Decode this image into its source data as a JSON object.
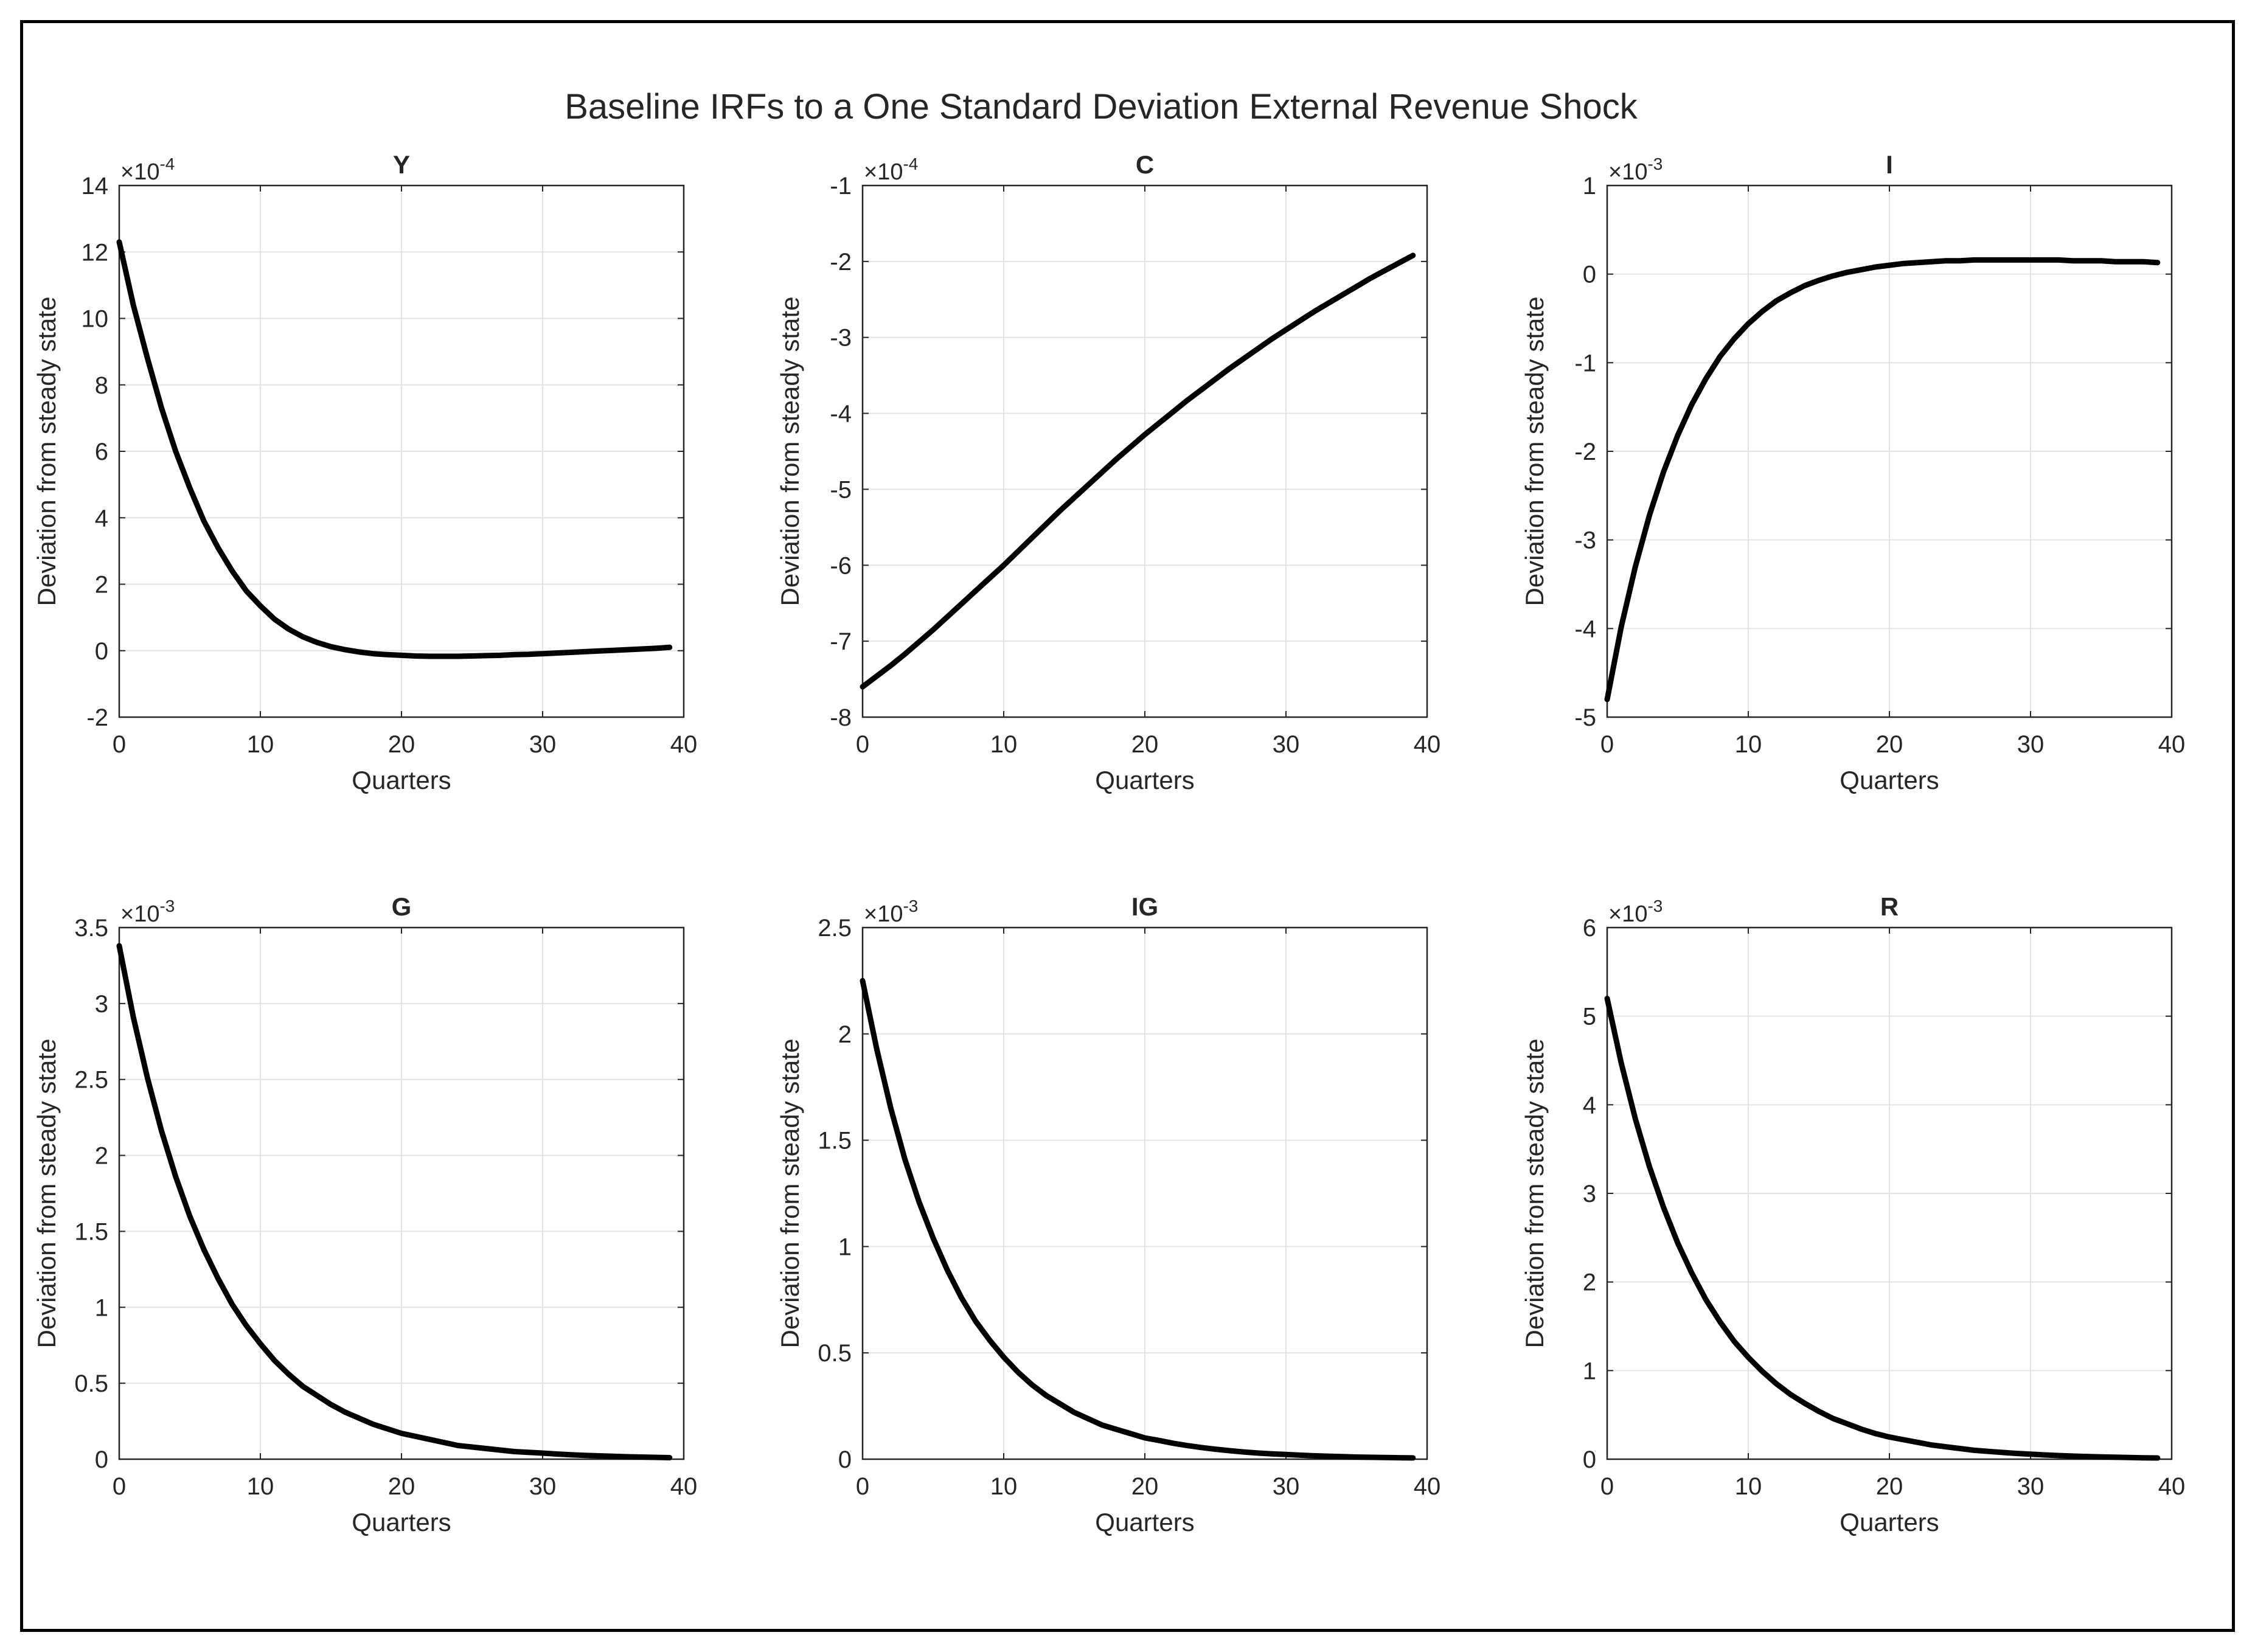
{
  "figure": {
    "title": "Baseline IRFs to a One Standard Deviation External Revenue Shock"
  },
  "chart_data": [
    {
      "type": "line",
      "title": "Y",
      "xlabel": "Quarters",
      "ylabel": "Deviation from steady state",
      "xlim": [
        0,
        40
      ],
      "ylim": [
        -2,
        14
      ],
      "xticks": [
        "0",
        "10",
        "20",
        "30",
        "40"
      ],
      "yticks": [
        "-2",
        "0",
        "2",
        "4",
        "6",
        "8",
        "10",
        "12",
        "14"
      ],
      "exponent_label": "×10",
      "exponent": "-4",
      "grid": true,
      "line_color": "#000000",
      "series": [
        {
          "x": [
            0,
            1,
            2,
            3,
            4,
            5,
            6,
            7,
            8,
            9,
            10,
            11,
            12,
            13,
            14,
            15,
            16,
            17,
            18,
            19,
            20,
            21,
            22,
            23,
            24,
            25,
            26,
            27,
            28,
            29,
            30,
            31,
            32,
            33,
            34,
            35,
            36,
            37,
            38,
            39
          ],
          "y": [
            12.3,
            10.4,
            8.8,
            7.3,
            6.0,
            4.9,
            3.9,
            3.1,
            2.4,
            1.8,
            1.35,
            0.95,
            0.65,
            0.42,
            0.25,
            0.12,
            0.03,
            -0.04,
            -0.09,
            -0.12,
            -0.14,
            -0.16,
            -0.17,
            -0.17,
            -0.17,
            -0.16,
            -0.15,
            -0.14,
            -0.12,
            -0.11,
            -0.09,
            -0.07,
            -0.05,
            -0.03,
            -0.01,
            0.01,
            0.03,
            0.05,
            0.07,
            0.1
          ]
        }
      ]
    },
    {
      "type": "line",
      "title": "C",
      "xlabel": "Quarters",
      "ylabel": "Deviation from steady state",
      "xlim": [
        0,
        40
      ],
      "ylim": [
        -8,
        -1
      ],
      "xticks": [
        "0",
        "10",
        "20",
        "30",
        "40"
      ],
      "yticks": [
        "-8",
        "-7",
        "-6",
        "-5",
        "-4",
        "-3",
        "-2",
        "-1"
      ],
      "exponent_label": "×10",
      "exponent": "-4",
      "grid": true,
      "line_color": "#000000",
      "series": [
        {
          "x": [
            0,
            1,
            2,
            3,
            4,
            5,
            6,
            7,
            8,
            9,
            10,
            11,
            12,
            13,
            14,
            15,
            16,
            17,
            18,
            19,
            20,
            21,
            22,
            23,
            24,
            25,
            26,
            27,
            28,
            29,
            30,
            31,
            32,
            33,
            34,
            35,
            36,
            37,
            38,
            39
          ],
          "y": [
            -7.6,
            -7.46,
            -7.32,
            -7.17,
            -7.01,
            -6.85,
            -6.68,
            -6.51,
            -6.34,
            -6.17,
            -6.0,
            -5.82,
            -5.64,
            -5.46,
            -5.28,
            -5.11,
            -4.94,
            -4.77,
            -4.6,
            -4.44,
            -4.28,
            -4.13,
            -3.98,
            -3.83,
            -3.69,
            -3.55,
            -3.41,
            -3.28,
            -3.15,
            -3.02,
            -2.9,
            -2.78,
            -2.66,
            -2.55,
            -2.44,
            -2.33,
            -2.22,
            -2.12,
            -2.02,
            -1.92
          ]
        }
      ]
    },
    {
      "type": "line",
      "title": "I",
      "xlabel": "Quarters",
      "ylabel": "Deviation from steady state",
      "xlim": [
        0,
        40
      ],
      "ylim": [
        -5,
        1
      ],
      "xticks": [
        "0",
        "10",
        "20",
        "30",
        "40"
      ],
      "yticks": [
        "-5",
        "-4",
        "-3",
        "-2",
        "-1",
        "0",
        "1"
      ],
      "exponent_label": "×10",
      "exponent": "-3",
      "grid": true,
      "line_color": "#000000",
      "series": [
        {
          "x": [
            0,
            1,
            2,
            3,
            4,
            5,
            6,
            7,
            8,
            9,
            10,
            11,
            12,
            13,
            14,
            15,
            16,
            17,
            18,
            19,
            20,
            21,
            22,
            23,
            24,
            25,
            26,
            27,
            28,
            29,
            30,
            31,
            32,
            33,
            34,
            35,
            36,
            37,
            38,
            39
          ],
          "y": [
            -4.8,
            -3.98,
            -3.3,
            -2.72,
            -2.23,
            -1.82,
            -1.47,
            -1.18,
            -0.93,
            -0.73,
            -0.56,
            -0.42,
            -0.3,
            -0.21,
            -0.13,
            -0.07,
            -0.02,
            0.02,
            0.05,
            0.08,
            0.1,
            0.12,
            0.13,
            0.14,
            0.15,
            0.15,
            0.16,
            0.16,
            0.16,
            0.16,
            0.16,
            0.16,
            0.16,
            0.15,
            0.15,
            0.15,
            0.14,
            0.14,
            0.14,
            0.13
          ]
        }
      ]
    },
    {
      "type": "line",
      "title": "G",
      "xlabel": "Quarters",
      "ylabel": "Deviation from steady state",
      "xlim": [
        0,
        40
      ],
      "ylim": [
        0,
        3.5
      ],
      "xticks": [
        "0",
        "10",
        "20",
        "30",
        "40"
      ],
      "yticks": [
        "0",
        "0.5",
        "1",
        "1.5",
        "2",
        "2.5",
        "3",
        "3.5"
      ],
      "exponent_label": "×10",
      "exponent": "-3",
      "grid": true,
      "line_color": "#000000",
      "series": [
        {
          "x": [
            0,
            1,
            2,
            3,
            4,
            5,
            6,
            7,
            8,
            9,
            10,
            11,
            12,
            13,
            14,
            15,
            16,
            17,
            18,
            19,
            20,
            21,
            22,
            23,
            24,
            25,
            26,
            27,
            28,
            29,
            30,
            31,
            32,
            33,
            34,
            35,
            36,
            37,
            38,
            39
          ],
          "y": [
            3.38,
            2.91,
            2.51,
            2.16,
            1.86,
            1.6,
            1.38,
            1.19,
            1.02,
            0.88,
            0.76,
            0.65,
            0.56,
            0.48,
            0.42,
            0.36,
            0.31,
            0.27,
            0.23,
            0.2,
            0.17,
            0.15,
            0.13,
            0.11,
            0.09,
            0.08,
            0.07,
            0.06,
            0.05,
            0.045,
            0.04,
            0.034,
            0.029,
            0.025,
            0.022,
            0.019,
            0.016,
            0.014,
            0.012,
            0.01
          ]
        }
      ]
    },
    {
      "type": "line",
      "title": "IG",
      "xlabel": "Quarters",
      "ylabel": "Deviation from steady state",
      "xlim": [
        0,
        40
      ],
      "ylim": [
        0,
        2.5
      ],
      "xticks": [
        "0",
        "10",
        "20",
        "30",
        "40"
      ],
      "yticks": [
        "0",
        "0.5",
        "1",
        "1.5",
        "2",
        "2.5"
      ],
      "exponent_label": "×10",
      "exponent": "-3",
      "grid": true,
      "line_color": "#000000",
      "series": [
        {
          "x": [
            0,
            1,
            2,
            3,
            4,
            5,
            6,
            7,
            8,
            9,
            10,
            11,
            12,
            13,
            14,
            15,
            16,
            17,
            18,
            19,
            20,
            21,
            22,
            23,
            24,
            25,
            26,
            27,
            28,
            29,
            30,
            31,
            32,
            33,
            34,
            35,
            36,
            37,
            38,
            39
          ],
          "y": [
            2.25,
            1.93,
            1.65,
            1.41,
            1.21,
            1.04,
            0.89,
            0.76,
            0.65,
            0.56,
            0.48,
            0.41,
            0.35,
            0.3,
            0.26,
            0.22,
            0.19,
            0.16,
            0.14,
            0.12,
            0.1,
            0.088,
            0.075,
            0.064,
            0.055,
            0.047,
            0.04,
            0.034,
            0.029,
            0.025,
            0.022,
            0.019,
            0.016,
            0.014,
            0.012,
            0.01,
            0.009,
            0.008,
            0.007,
            0.006
          ]
        }
      ]
    },
    {
      "type": "line",
      "title": "R",
      "xlabel": "Quarters",
      "ylabel": "Deviation from steady state",
      "xlim": [
        0,
        40
      ],
      "ylim": [
        0,
        6
      ],
      "xticks": [
        "0",
        "10",
        "20",
        "30",
        "40"
      ],
      "yticks": [
        "0",
        "1",
        "2",
        "3",
        "4",
        "5",
        "6"
      ],
      "exponent_label": "×10",
      "exponent": "-3",
      "grid": true,
      "line_color": "#000000",
      "series": [
        {
          "x": [
            0,
            1,
            2,
            3,
            4,
            5,
            6,
            7,
            8,
            9,
            10,
            11,
            12,
            13,
            14,
            15,
            16,
            17,
            18,
            19,
            20,
            21,
            22,
            23,
            24,
            25,
            26,
            27,
            28,
            29,
            30,
            31,
            32,
            33,
            34,
            35,
            36,
            37,
            38,
            39
          ],
          "y": [
            5.2,
            4.47,
            3.84,
            3.3,
            2.84,
            2.44,
            2.1,
            1.8,
            1.55,
            1.33,
            1.15,
            0.99,
            0.85,
            0.73,
            0.63,
            0.54,
            0.46,
            0.4,
            0.34,
            0.29,
            0.25,
            0.22,
            0.19,
            0.16,
            0.14,
            0.12,
            0.1,
            0.088,
            0.076,
            0.065,
            0.056,
            0.048,
            0.041,
            0.035,
            0.03,
            0.026,
            0.022,
            0.019,
            0.016,
            0.014
          ]
        }
      ]
    }
  ]
}
